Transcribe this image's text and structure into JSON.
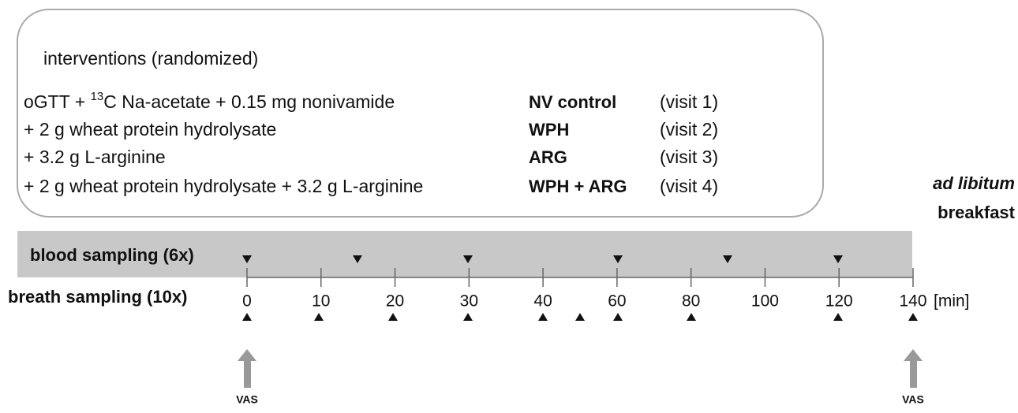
{
  "interventions": {
    "title": "interventions  (randomized)",
    "rows": [
      {
        "pre": "oGTT + ",
        "sup": "13",
        "post": "C Na-acetate + 0.15 mg nonivamide",
        "label": "NV control",
        "visit": "(visit 1)"
      },
      {
        "text": "+ 2 g wheat protein hydrolysate",
        "label": "WPH",
        "visit": "(visit 2)"
      },
      {
        "text": "+ 3.2 g L-arginine",
        "label": "ARG",
        "visit": "(visit 3)"
      },
      {
        "text": "+ 2 g wheat protein hydrolysate + 3.2 g L-arginine",
        "label": "WPH + ARG",
        "visit": "(visit 4)"
      }
    ]
  },
  "breakfast": {
    "line1": "ad libitum",
    "line2": "breakfast"
  },
  "timeline": {
    "blood_label": "blood sampling (6x)",
    "breath_label": "breath sampling (10x)",
    "ticks": [
      0,
      10,
      20,
      30,
      40,
      60,
      80,
      100,
      120,
      140
    ],
    "unit": "[min]"
  },
  "vas": [
    "VAS",
    "VAS"
  ]
}
